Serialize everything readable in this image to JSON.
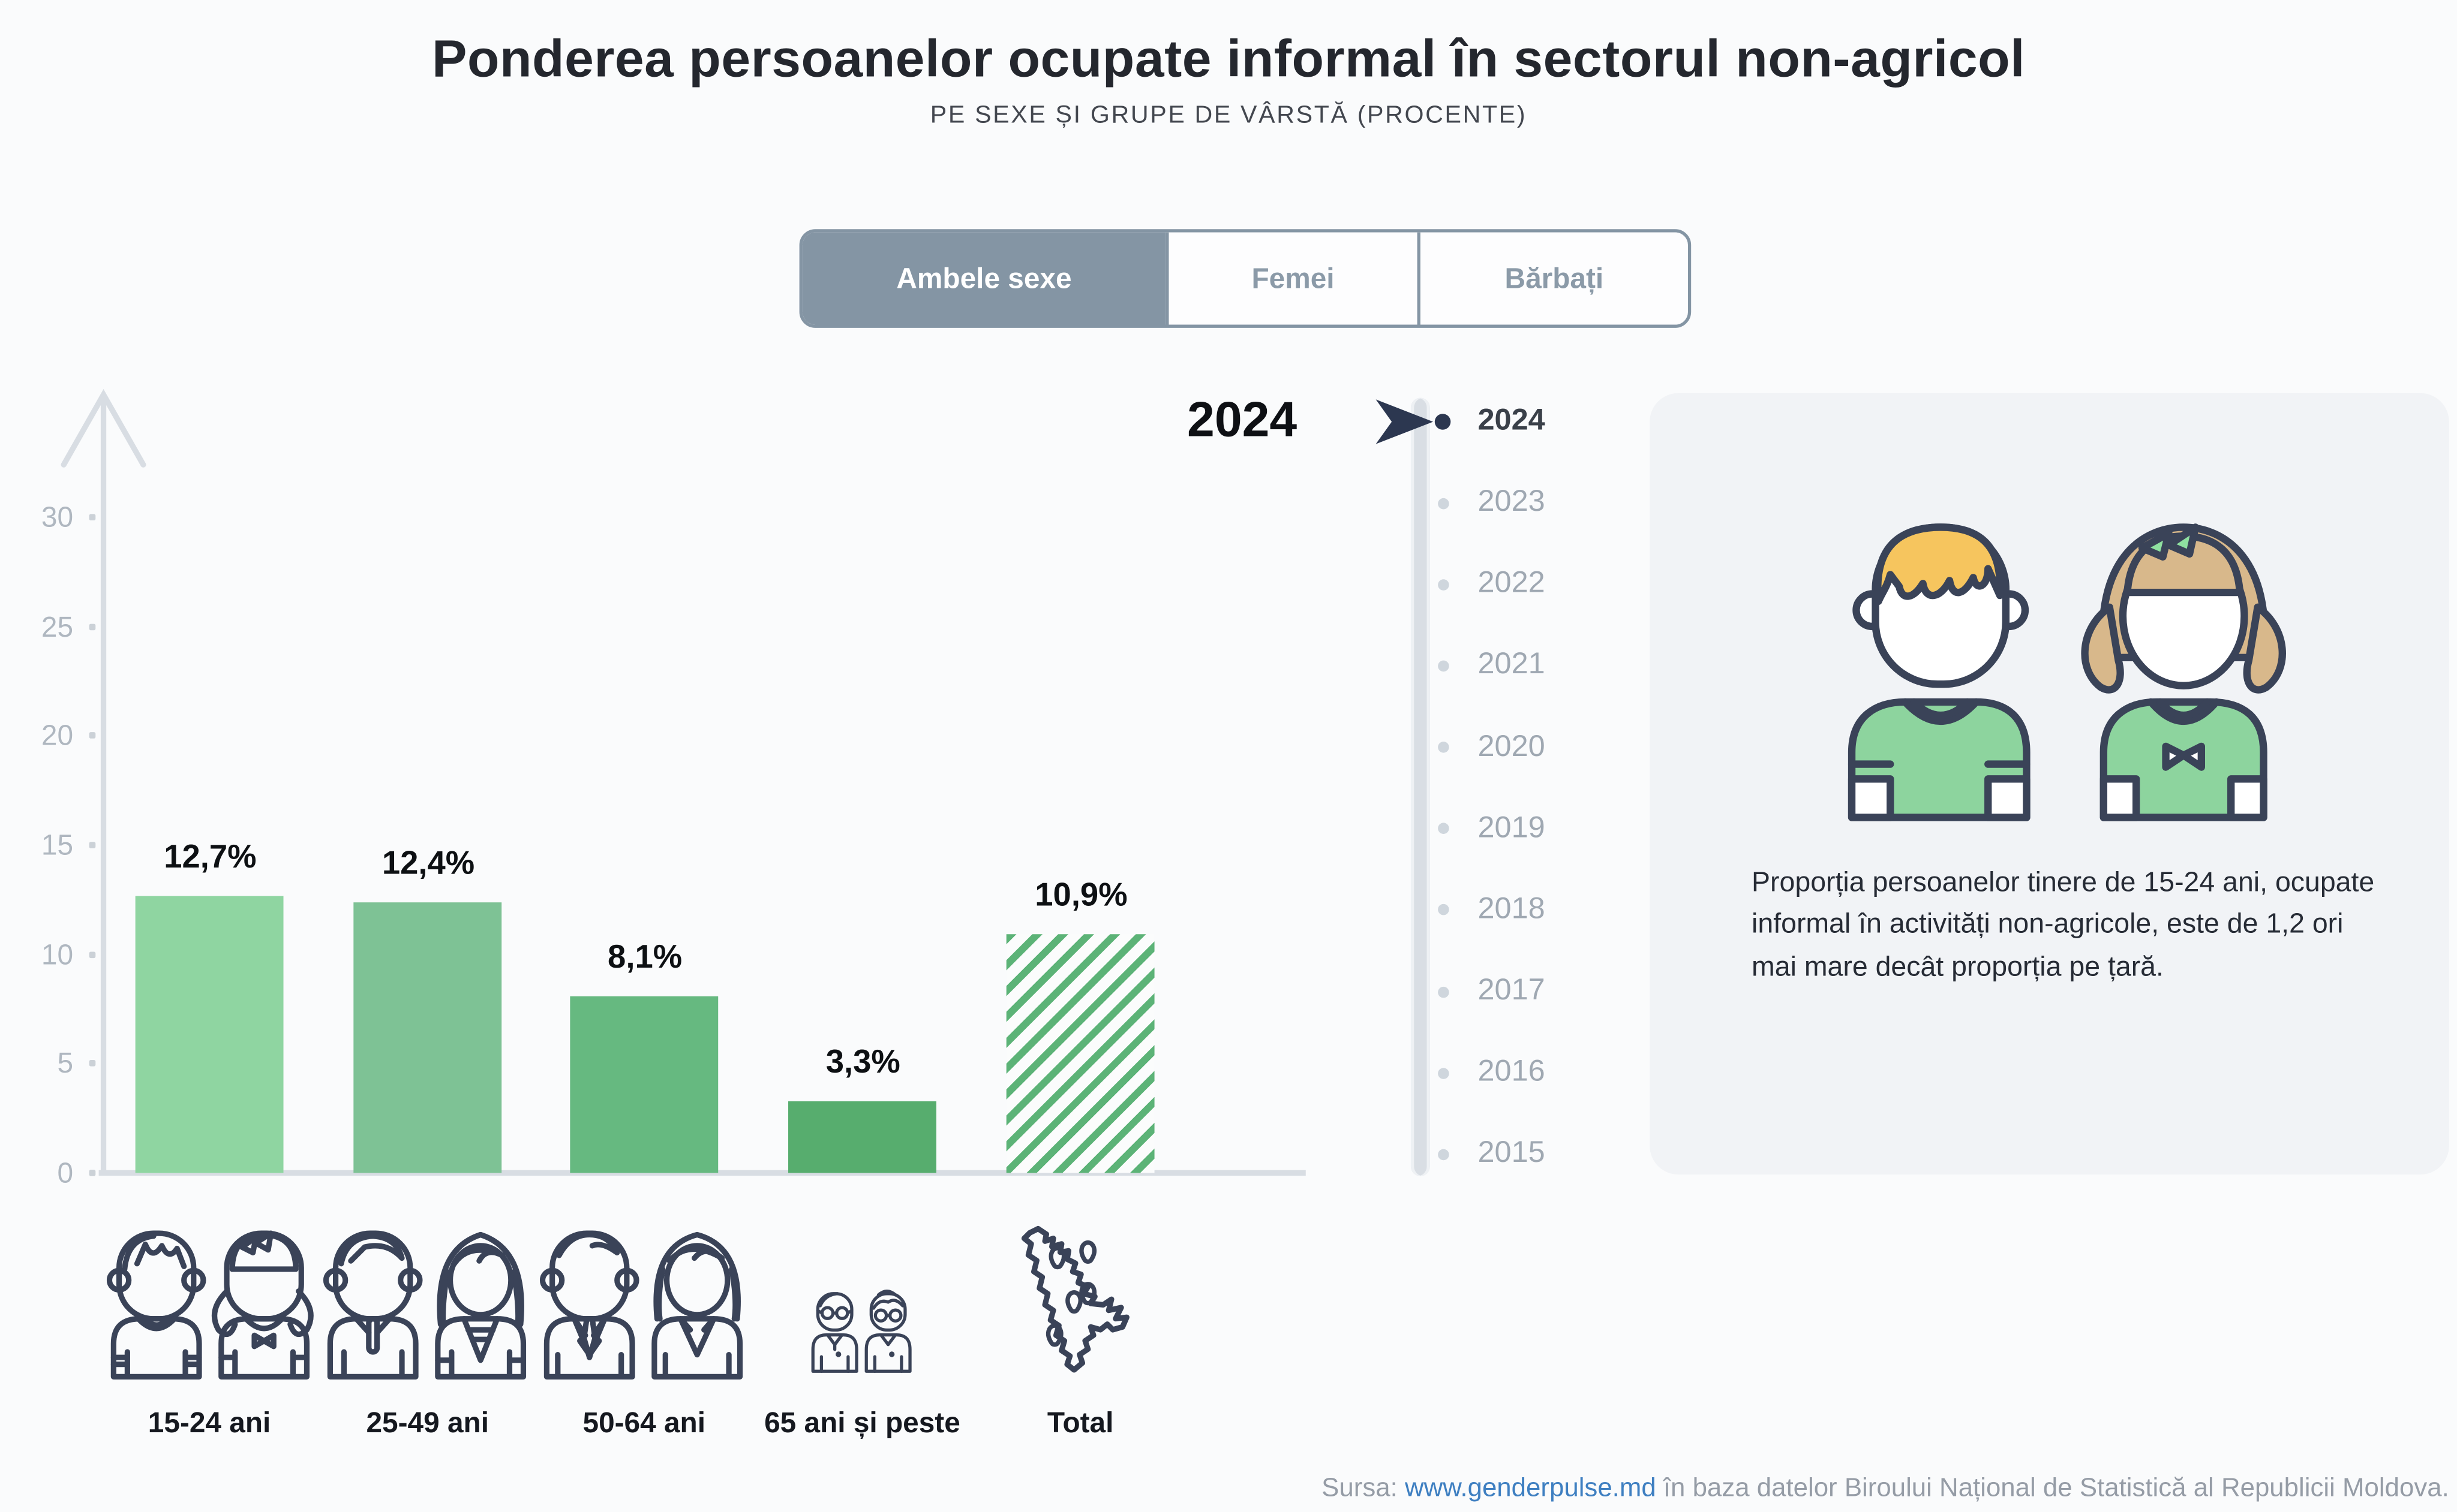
{
  "header": {
    "title": "Ponderea persoanelor ocupate informal în sectorul non-agricol",
    "subtitle": "PE SEXE ȘI GRUPE DE VÂRSTĂ (PROCENTE)"
  },
  "tabs": {
    "items": [
      {
        "label": "Ambele sexe",
        "active": true
      },
      {
        "label": "Femei",
        "active": false
      },
      {
        "label": "Bărbați",
        "active": false
      }
    ]
  },
  "chart_data": {
    "type": "bar",
    "title": "Ponderea persoanelor ocupate informal în sectorul non-agricol",
    "subtitle": "Pe sexe și grupe de vârstă (procente)",
    "year_label": "2024",
    "categories": [
      "15-24 ani",
      "25-49 ani",
      "50-64 ani",
      "65 ani și peste",
      "Total"
    ],
    "values": [
      12.7,
      12.4,
      8.1,
      3.3,
      10.9
    ],
    "value_labels": [
      "12,7%",
      "12,4%",
      "8,1%",
      "3,3%",
      "10,9%"
    ],
    "bar_colors": [
      "#8fd5a1",
      "#7ec295",
      "#66b980",
      "#57ad6e",
      "hatch"
    ],
    "hatch_color": "#5cb377",
    "ylim": [
      0,
      30
    ],
    "yticks": [
      0,
      5,
      10,
      15,
      20,
      25,
      30
    ],
    "grid": false,
    "legend": null
  },
  "timeline": {
    "selected": "2024",
    "years": [
      "2024",
      "2023",
      "2022",
      "2021",
      "2020",
      "2019",
      "2018",
      "2017",
      "2016",
      "2015"
    ]
  },
  "side_panel": {
    "text": "Proporția persoanelor tinere de 15-24 ani, ocupate informal în activități non-agricole, este de 1,2 ori mai mare decât proporția pe țară."
  },
  "footer": {
    "prefix": "Sursa: ",
    "link": "www.genderpulse.md",
    "suffix": " în baza datelor Biroului Național de Statistică al Republicii Moldova."
  },
  "colors": {
    "page_bg": "#fafbfc",
    "panel_bg": "#f1f3f6",
    "tab_active": "#8495a4",
    "axis": "#d8dde3",
    "icon_stroke": "#3a4358",
    "link": "#3e7fc1",
    "boy_hair": "#f6c55e",
    "girl_hair": "#d8b88b",
    "shirt_green": "#8dd49e",
    "bow_green": "#8fe0a0",
    "timeline_cursor": "#2c3750"
  }
}
